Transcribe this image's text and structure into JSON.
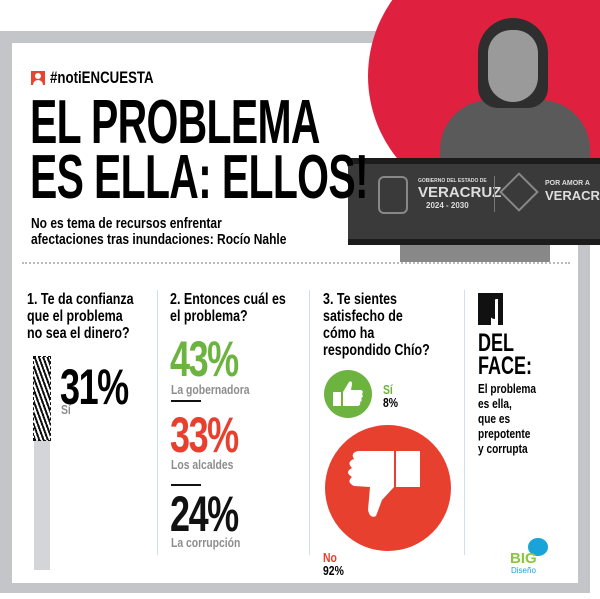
{
  "header": {
    "hashtag": "#notiENCUESTA",
    "title_line1": "EL PROBLEMA",
    "title_line2": "ES ELLA: ELLOS!",
    "subtitle_line1": "No es tema de recursos enfrentar",
    "subtitle_line2": "afectaciones tras inundaciones: Rocío Nahle"
  },
  "photo": {
    "podium_left_small": "GOBIERNO DEL ESTADO DE",
    "podium_left_big": "VERACRUZ",
    "podium_years": "2024 - 2030",
    "podium_right_small": "POR AMOR A",
    "podium_right_big": "VERACRUZ"
  },
  "questions": [
    {
      "question": "1. Te da confianza que el problema no sea el dinero?",
      "answers": [
        {
          "label": "Sí",
          "value": "31%",
          "percent": 31
        }
      ]
    },
    {
      "question": "2. Entonces cuál es el problema?",
      "answers": [
        {
          "label": "La gobernadora",
          "value": "43%"
        },
        {
          "label": "Los alcaldes",
          "value": "33%"
        },
        {
          "label": "La corrupción",
          "value": "24%"
        }
      ]
    },
    {
      "question": "3. Te sientes satisfecho de cómo ha respondido Chío?",
      "answers": [
        {
          "label": "Sí",
          "value": "8%"
        },
        {
          "label": "No",
          "value": "92%"
        }
      ]
    }
  ],
  "face": {
    "title_line1": "DEL",
    "title_line2": "FACE:",
    "text": [
      "El problema",
      "es ella,",
      "que es",
      "prepotente",
      "y corrupta"
    ]
  },
  "logo": {
    "big": "BIG",
    "sub": "Diseño"
  },
  "colors": {
    "red": "#e8402f",
    "green": "#6db33f",
    "frame": "#c4c5c9",
    "circle": "#e0203f"
  },
  "q1_labels": [
    "1. Te da confianza",
    "que el problema",
    "no sea el dinero?"
  ],
  "q2_labels": [
    "2. Entonces cuál es",
    "el problema?"
  ],
  "q3_labels": [
    "3. Te sientes",
    "satisfecho de",
    "cómo ha",
    "respondido Chío?"
  ]
}
